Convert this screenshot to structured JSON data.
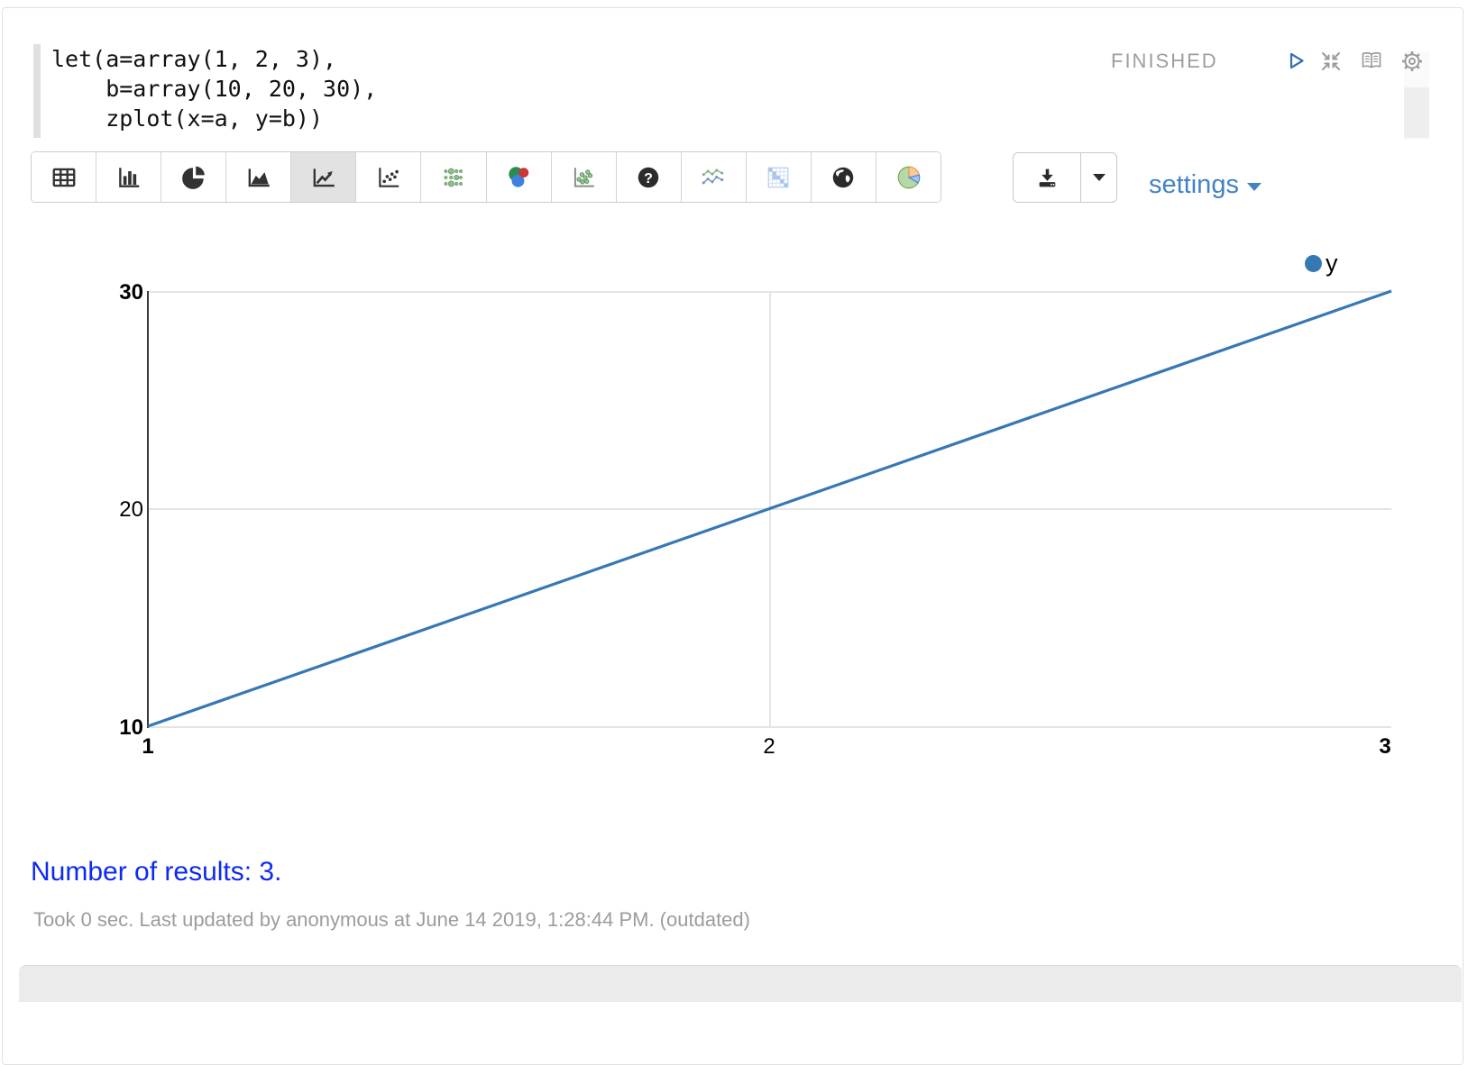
{
  "editor": {
    "code_lines": [
      "let(a=array(1, 2, 3),",
      "    b=array(10, 20, 30),",
      "    zplot(x=a, y=b))"
    ],
    "status": "FINISHED"
  },
  "controls": {
    "icons": [
      "run-icon",
      "compress-icon",
      "book-icon",
      "gear-icon"
    ]
  },
  "toolbar": {
    "selected": "line-chart",
    "buttons": [
      "table",
      "bar-chart",
      "pie-chart",
      "area-chart",
      "line-chart",
      "scatter-chart",
      "bubble-grid",
      "venn-diagram",
      "scatter-green",
      "help",
      "multi-line",
      "heatmap",
      "map-globe",
      "donut-pie"
    ]
  },
  "export": {
    "tooltip_icon": "download-icon"
  },
  "settings": {
    "label": "settings"
  },
  "chart_data": {
    "type": "line",
    "x": [
      1,
      2,
      3
    ],
    "series": [
      {
        "name": "y",
        "values": [
          10,
          20,
          30
        ],
        "color": "#3578b4"
      }
    ],
    "xlim": [
      1,
      3
    ],
    "ylim": [
      10,
      30
    ],
    "x_tick_labels": [
      "1",
      "2",
      "3"
    ],
    "y_tick_labels": [
      "30",
      "20",
      "10"
    ],
    "grid": true,
    "legend_position": "top-right",
    "title": "",
    "xlabel": "",
    "ylabel": ""
  },
  "results": {
    "summary": "Number of results: 3."
  },
  "footer": {
    "text": "Took 0 sec. Last updated by anonymous at June 14 2019, 1:28:44 PM. (outdated)"
  },
  "colors": {
    "accent_blue": "#4183c4",
    "series_blue": "#3578b4",
    "status_gray": "#9e9e9e",
    "result_blue": "#0d2af0"
  }
}
